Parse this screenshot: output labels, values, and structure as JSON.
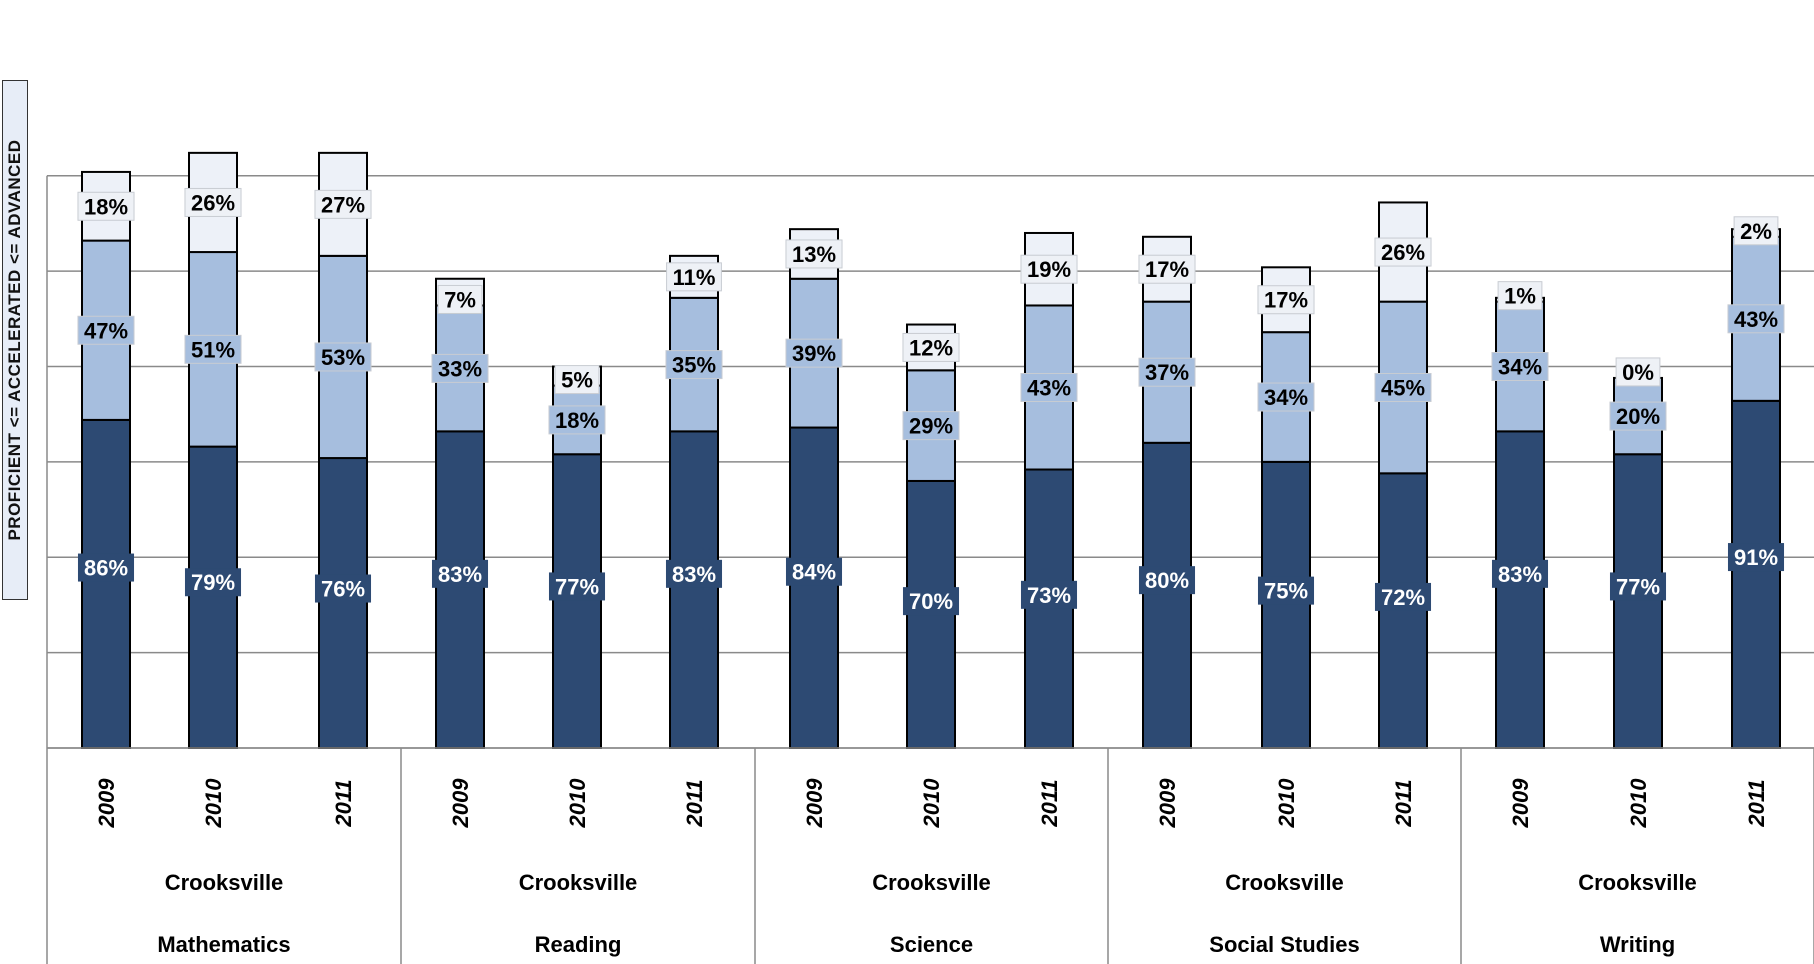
{
  "chart_data": {
    "type": "bar",
    "stacked": true,
    "ylabel": "PROFICIENT <= ACCELERATED <= ADVANCED",
    "categories": [
      {
        "year": "2009",
        "school": "Crooksville",
        "subject": "Mathematics"
      },
      {
        "year": "2010",
        "school": "Crooksville",
        "subject": "Mathematics"
      },
      {
        "year": "2011",
        "school": "Crooksville",
        "subject": "Mathematics"
      },
      {
        "year": "2009",
        "school": "Crooksville",
        "subject": "Reading"
      },
      {
        "year": "2010",
        "school": "Crooksville",
        "subject": "Reading"
      },
      {
        "year": "2011",
        "school": "Crooksville",
        "subject": "Reading"
      },
      {
        "year": "2009",
        "school": "Crooksville",
        "subject": "Science"
      },
      {
        "year": "2010",
        "school": "Crooksville",
        "subject": "Science"
      },
      {
        "year": "2011",
        "school": "Crooksville",
        "subject": "Science"
      },
      {
        "year": "2009",
        "school": "Crooksville",
        "subject": "Social Studies"
      },
      {
        "year": "2010",
        "school": "Crooksville",
        "subject": "Social Studies"
      },
      {
        "year": "2011",
        "school": "Crooksville",
        "subject": "Social Studies"
      },
      {
        "year": "2009",
        "school": "Crooksville",
        "subject": "Writing"
      },
      {
        "year": "2010",
        "school": "Crooksville",
        "subject": "Writing"
      },
      {
        "year": "2011",
        "school": "Crooksville",
        "subject": "Writing"
      }
    ],
    "groups": [
      {
        "school": "Crooksville",
        "subject": "Mathematics"
      },
      {
        "school": "Crooksville",
        "subject": "Reading"
      },
      {
        "school": "Crooksville",
        "subject": "Science"
      },
      {
        "school": "Crooksville",
        "subject": "Social Studies"
      },
      {
        "school": "Crooksville",
        "subject": "Writing"
      }
    ],
    "series": [
      {
        "values": [
          86,
          79,
          76,
          83,
          77,
          83,
          84,
          70,
          73,
          80,
          75,
          72,
          83,
          77,
          91
        ],
        "labels": [
          "86%",
          "79%",
          "76%",
          "83%",
          "77%",
          "83%",
          "84%",
          "70%",
          "73%",
          "80%",
          "75%",
          "72%",
          "83%",
          "77%",
          "91%"
        ],
        "color": "#2d4a73",
        "label_fill": "#2d4a73",
        "label_text_color": "#ffffff"
      },
      {
        "values": [
          47,
          51,
          53,
          33,
          18,
          35,
          39,
          29,
          43,
          37,
          34,
          45,
          34,
          20,
          43
        ],
        "labels": [
          "47%",
          "51%",
          "53%",
          "33%",
          "18%",
          "35%",
          "39%",
          "29%",
          "43%",
          "37%",
          "34%",
          "45%",
          "34%",
          "20%",
          "43%"
        ],
        "color": "#a6bede",
        "label_fill": "#a6bede",
        "label_text_color": "#000000"
      },
      {
        "values": [
          18,
          26,
          27,
          7,
          5,
          11,
          13,
          12,
          19,
          17,
          17,
          26,
          1,
          0,
          2
        ],
        "labels": [
          "18%",
          "26%",
          "27%",
          "7%",
          "5%",
          "11%",
          "13%",
          "12%",
          "19%",
          "17%",
          "17%",
          "26%",
          "1%",
          "0%",
          "2%"
        ],
        "color": "#edf1f8",
        "label_fill": "#eef1f6",
        "label_text_color": "#000000"
      }
    ],
    "ylim": [
      0,
      175
    ],
    "grid": true,
    "legend": "none"
  }
}
